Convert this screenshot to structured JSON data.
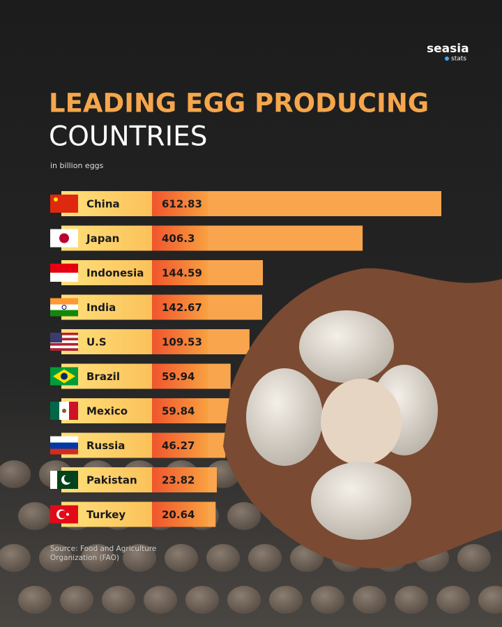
{
  "brand": {
    "name": "seasia",
    "tag": "stats"
  },
  "chart_data": {
    "type": "bar",
    "orientation": "horizontal",
    "title": "LEADING EGG PRODUCING",
    "title_line2": "COUNTRIES",
    "subtitle": "in billion eggs",
    "categories": [
      "China",
      "Japan",
      "Indonesia",
      "India",
      "U.S",
      "Brazil",
      "Mexico",
      "Russia",
      "Pakistan",
      "Turkey"
    ],
    "values": [
      612.83,
      406.3,
      144.59,
      142.67,
      109.53,
      59.94,
      59.84,
      46.27,
      23.82,
      20.64
    ],
    "color": "#f9a54e",
    "source": [
      "Source: Food and Agriculture",
      "Organization (FAO)"
    ]
  }
}
